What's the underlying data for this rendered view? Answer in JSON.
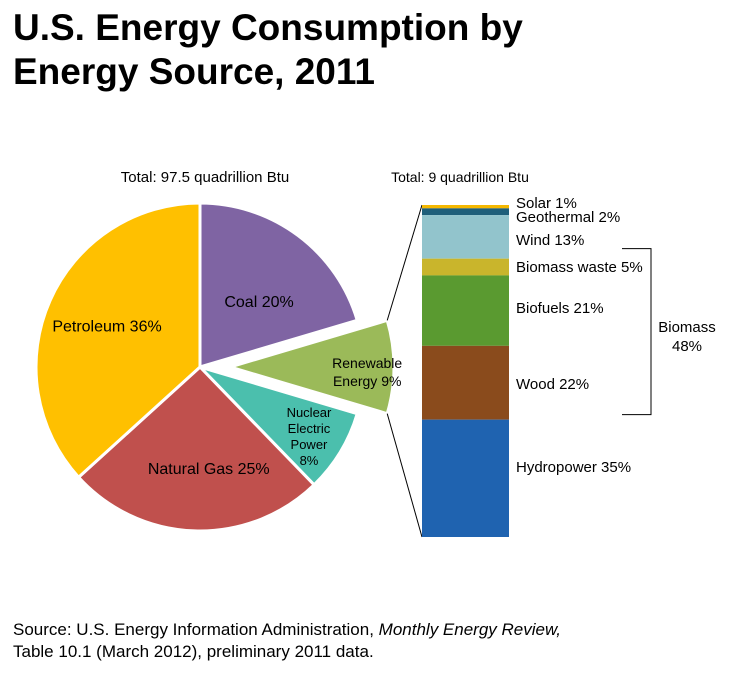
{
  "title": {
    "line1": "U.S. Energy Consumption by",
    "line2": "Energy Source, 2011"
  },
  "chart_data": [
    {
      "type": "pie",
      "title": "U.S. Energy Consumption by Energy Source, 2011",
      "subtitle": "Total:  97.5 quadrillion Btu",
      "unit": "%",
      "slices": [
        {
          "key": "coal",
          "label_lines": [
            "Coal 20%"
          ],
          "value": 20,
          "color": "#7f64a3",
          "exploded": false
        },
        {
          "key": "renewable",
          "label_lines": [
            "Renewable",
            "Energy 9%"
          ],
          "value": 9,
          "color": "#9bba59",
          "exploded": true
        },
        {
          "key": "nuclear",
          "label_lines": [
            "Nuclear",
            "Electric",
            "Power",
            "8%"
          ],
          "value": 8,
          "color": "#4bbfad",
          "exploded": false
        },
        {
          "key": "natural-gas",
          "label_lines": [
            "Natural Gas 25%"
          ],
          "value": 25,
          "color": "#c0504d",
          "exploded": false
        },
        {
          "key": "petroleum",
          "label_lines": [
            "Petroleum 36%"
          ],
          "value": 36,
          "color": "#ffc000",
          "exploded": false
        }
      ]
    },
    {
      "type": "bar",
      "stacked": true,
      "subtitle": "Total:  9 quadrillion Btu",
      "unit": "%",
      "segments": [
        {
          "key": "solar",
          "label": "Solar  1%",
          "value": 1,
          "color": "#f5b800"
        },
        {
          "key": "geothermal",
          "label": "Geothermal  2%",
          "value": 2,
          "color": "#1f5f7a"
        },
        {
          "key": "wind",
          "label": "Wind 13%",
          "value": 13,
          "color": "#92c4cc"
        },
        {
          "key": "biomass-waste",
          "label": "Biomass waste  5%",
          "value": 5,
          "color": "#c9b52c"
        },
        {
          "key": "biofuels",
          "label": "Biofuels  21%",
          "value": 21,
          "color": "#5a9a30"
        },
        {
          "key": "wood",
          "label": "Wood  22%",
          "value": 22,
          "color": "#8a4b1c"
        },
        {
          "key": "hydropower",
          "label": "Hydropower  35%",
          "value": 35,
          "color": "#1f63b0"
        }
      ],
      "group_bracket": {
        "label_lines": [
          "Biomass",
          "48%"
        ],
        "members": [
          "biomass-waste",
          "biofuels",
          "wood"
        ]
      }
    }
  ],
  "source": {
    "prefix": "Source: U.S. Energy Information Administration, ",
    "italic": "Monthly Energy Review,",
    "line2": "Table 10.1 (March 2012), preliminary 2011 data."
  }
}
